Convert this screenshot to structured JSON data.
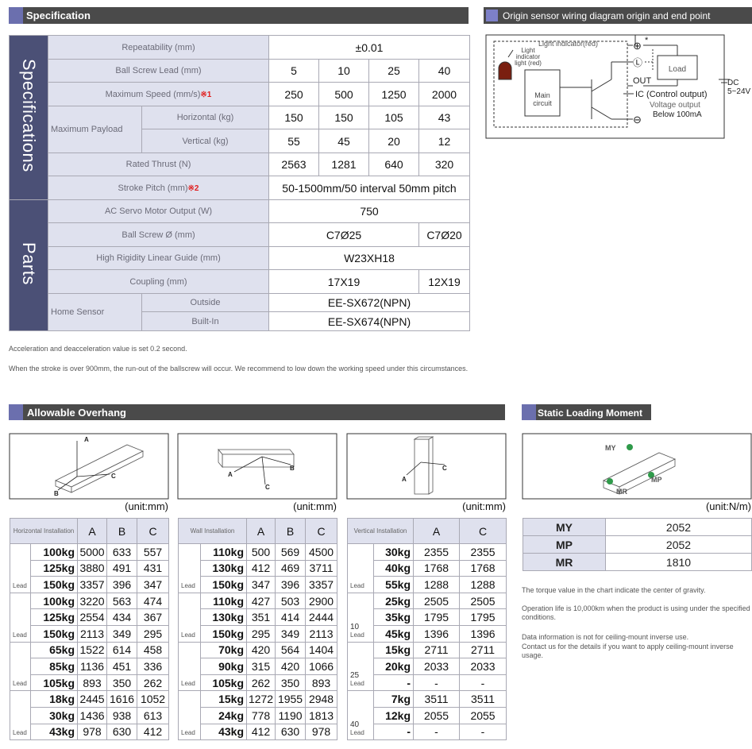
{
  "spec": {
    "title": "Specification",
    "side": [
      "Specifications",
      "Parts"
    ],
    "rows": [
      {
        "label": "Repeatability (mm)",
        "values": [
          "±0.01"
        ]
      },
      {
        "label": "Ball Screw Lead (mm)",
        "values": [
          "5",
          "10",
          "25",
          "40"
        ]
      },
      {
        "label": "Maximum Speed (mm/s)",
        "note": "※1",
        "values": [
          "250",
          "500",
          "1250",
          "2000"
        ]
      },
      {
        "group": "Maximum Payload",
        "label": "Horizontal (kg)",
        "values": [
          "150",
          "150",
          "105",
          "43"
        ]
      },
      {
        "label": "Vertical (kg)",
        "values": [
          "55",
          "45",
          "20",
          "12"
        ]
      },
      {
        "label": "Rated Thrust (N)",
        "values": [
          "2563",
          "1281",
          "640",
          "320"
        ]
      },
      {
        "label": "Stroke Pitch (mm)",
        "note": "※2",
        "values": [
          "50-1500mm/50 interval 50mm pitch"
        ]
      },
      {
        "label": "AC Servo Motor Output (W)",
        "values": [
          "750"
        ]
      },
      {
        "label": "Ball Screw Ø (mm)",
        "values": [
          "C7Ø25",
          "C7Ø20"
        ]
      },
      {
        "label": "High Rigidity Linear Guide (mm)",
        "values": [
          "W23XH18"
        ]
      },
      {
        "label": "Coupling (mm)",
        "values": [
          "17X19",
          "12X19"
        ]
      },
      {
        "group": "Home Sensor",
        "label": "Outside",
        "values": [
          "EE-SX672(NPN)"
        ]
      },
      {
        "label": "Built-In",
        "values": [
          "EE-SX674(NPN)"
        ]
      }
    ],
    "notes": [
      "Acceleration and deacceleration value is set 0.2 second.",
      "When the stroke is over 900mm, the run-out of the ballscrew will occur. We recommend to low down the working speed under this circumstances."
    ]
  },
  "wiring": {
    "title": "Origin sensor wiring diagram origin and end point",
    "light_indicator": "Light indicator(red)",
    "indicator_light": "Light indicator light (red)",
    "plus": "⊕",
    "asterisk": "*",
    "l": "Ⓛ",
    "minus": "⊖",
    "load": "Load",
    "out": "OUT",
    "ic": "IC (Control output)",
    "voltage": "Voltage output",
    "current": "Below 100mA",
    "main": "Main circuit",
    "dc": "DC",
    "dc_range": "5~24V"
  },
  "overhang": {
    "title": "Allowable Overhang",
    "tables": [
      {
        "unit": "(unit:mm)",
        "diagram": [
          "A",
          "B",
          "C"
        ],
        "heading": "Horizontal Installation",
        "columns": [
          "A",
          "B",
          "C"
        ],
        "groups": [
          {
            "label": "Lead",
            "rows": [
              [
                "100kg",
                "5000",
                "633",
                "557"
              ],
              [
                "125kg",
                "3880",
                "491",
                "431"
              ],
              [
                "150kg",
                "3357",
                "396",
                "347"
              ]
            ]
          },
          {
            "label": "Lead",
            "rows": [
              [
                "100kg",
                "3220",
                "563",
                "474"
              ],
              [
                "125kg",
                "2554",
                "434",
                "367"
              ],
              [
                "150kg",
                "2113",
                "349",
                "295"
              ]
            ]
          },
          {
            "label": "Lead",
            "rows": [
              [
                "65kg",
                "1522",
                "614",
                "458"
              ],
              [
                "85kg",
                "1136",
                "451",
                "336"
              ],
              [
                "105kg",
                "893",
                "350",
                "262"
              ]
            ]
          },
          {
            "label": "Lead",
            "rows": [
              [
                "18kg",
                "2445",
                "1616",
                "1052"
              ],
              [
                "30kg",
                "1436",
                "938",
                "613"
              ],
              [
                "43kg",
                "978",
                "630",
                "412"
              ]
            ]
          }
        ]
      },
      {
        "unit": "(unit:mm)",
        "diagram": [
          "A",
          "B",
          "C"
        ],
        "heading": "Wall Installation",
        "columns": [
          "A",
          "B",
          "C"
        ],
        "groups": [
          {
            "label": "Lead",
            "rows": [
              [
                "110kg",
                "500",
                "569",
                "4500"
              ],
              [
                "130kg",
                "412",
                "469",
                "3711"
              ],
              [
                "150kg",
                "347",
                "396",
                "3357"
              ]
            ]
          },
          {
            "label": "Lead",
            "rows": [
              [
                "110kg",
                "427",
                "503",
                "2900"
              ],
              [
                "130kg",
                "351",
                "414",
                "2444"
              ],
              [
                "150kg",
                "295",
                "349",
                "2113"
              ]
            ]
          },
          {
            "label": "Lead",
            "rows": [
              [
                "70kg",
                "420",
                "564",
                "1404"
              ],
              [
                "90kg",
                "315",
                "420",
                "1066"
              ],
              [
                "105kg",
                "262",
                "350",
                "893"
              ]
            ]
          },
          {
            "label": "Lead",
            "rows": [
              [
                "15kg",
                "1272",
                "1955",
                "2948"
              ],
              [
                "24kg",
                "778",
                "1190",
                "1813"
              ],
              [
                "43kg",
                "412",
                "630",
                "978"
              ]
            ]
          }
        ]
      },
      {
        "unit": "(unit:mm)",
        "diagram": [
          "A",
          "C"
        ],
        "heading": "Vertical Installation",
        "columns": [
          "A",
          "C"
        ],
        "groups": [
          {
            "label": "Lead",
            "rows": [
              [
                "30kg",
                "2355",
                "2355"
              ],
              [
                "40kg",
                "1768",
                "1768"
              ],
              [
                "55kg",
                "1288",
                "1288"
              ]
            ]
          },
          {
            "lead": "10",
            "label": "Lead",
            "rows": [
              [
                "25kg",
                "2505",
                "2505"
              ],
              [
                "35kg",
                "1795",
                "1795"
              ],
              [
                "45kg",
                "1396",
                "1396"
              ]
            ]
          },
          {
            "lead": "25",
            "label": "Lead",
            "rows": [
              [
                "15kg",
                "2711",
                "2711"
              ],
              [
                "20kg",
                "2033",
                "2033"
              ],
              [
                "-",
                "-",
                "-"
              ]
            ]
          },
          {
            "lead": "40",
            "label": "Lead",
            "rows": [
              [
                "7kg",
                "3511",
                "3511"
              ],
              [
                "12kg",
                "2055",
                "2055"
              ],
              [
                "-",
                "-",
                "-"
              ]
            ]
          }
        ]
      }
    ]
  },
  "static": {
    "title": "Static Loading Moment",
    "unit": "(unit:N/m)",
    "diagram": [
      "MY",
      "MP",
      "MR"
    ],
    "rows": [
      [
        "MY",
        "2052"
      ],
      [
        "MP",
        "2052"
      ],
      [
        "MR",
        "1810"
      ]
    ],
    "notes": [
      "The torque value in the chart indicate the center of gravity.",
      "Operation life is 10,000km when the product is using under the specified conditions.",
      "Data information is not for ceiling-mount inverse use.",
      "Contact us for the details if you want to apply ceiling-mount inverse usage."
    ]
  }
}
